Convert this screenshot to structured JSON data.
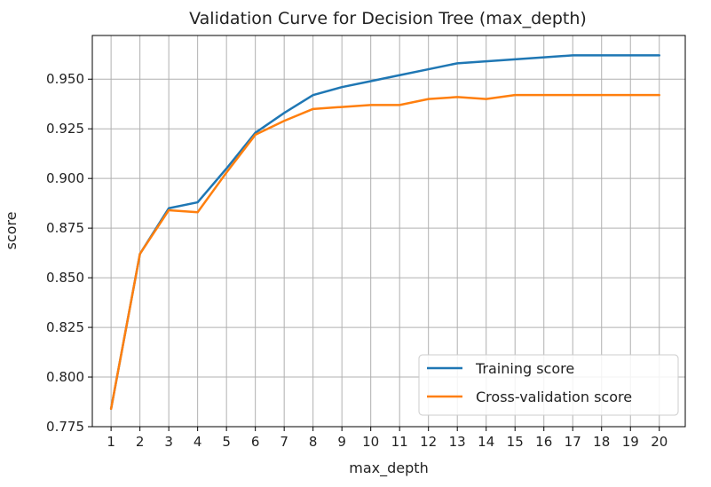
{
  "chart_data": {
    "type": "line",
    "title": "Validation Curve for Decision Tree (max_depth)",
    "xlabel": "max_depth",
    "ylabel": "score",
    "x": [
      1,
      2,
      3,
      4,
      5,
      6,
      7,
      8,
      9,
      10,
      11,
      12,
      13,
      14,
      15,
      16,
      17,
      18,
      19,
      20
    ],
    "xlim": [
      0.35,
      20.9
    ],
    "ylim": [
      0.775,
      0.972
    ],
    "yticks": [
      0.775,
      0.8,
      0.825,
      0.85,
      0.875,
      0.9,
      0.925,
      0.95
    ],
    "ytick_labels": [
      "0.775",
      "0.800",
      "0.825",
      "0.850",
      "0.875",
      "0.900",
      "0.925",
      "0.950"
    ],
    "grid": true,
    "legend_position": "lower-right",
    "series": [
      {
        "name": "Training score",
        "color": "#1f77b4",
        "values": [
          0.784,
          0.862,
          0.885,
          0.888,
          0.905,
          0.923,
          0.933,
          0.942,
          0.946,
          0.949,
          0.952,
          0.955,
          0.958,
          0.959,
          0.96,
          0.961,
          0.962,
          0.962,
          0.962,
          0.962
        ]
      },
      {
        "name": "Cross-validation score",
        "color": "#ff7f0e",
        "values": [
          0.784,
          0.862,
          0.884,
          0.883,
          0.903,
          0.922,
          0.929,
          0.935,
          0.936,
          0.937,
          0.937,
          0.94,
          0.941,
          0.94,
          0.942,
          0.942,
          0.942,
          0.942,
          0.942,
          0.942
        ]
      }
    ]
  }
}
